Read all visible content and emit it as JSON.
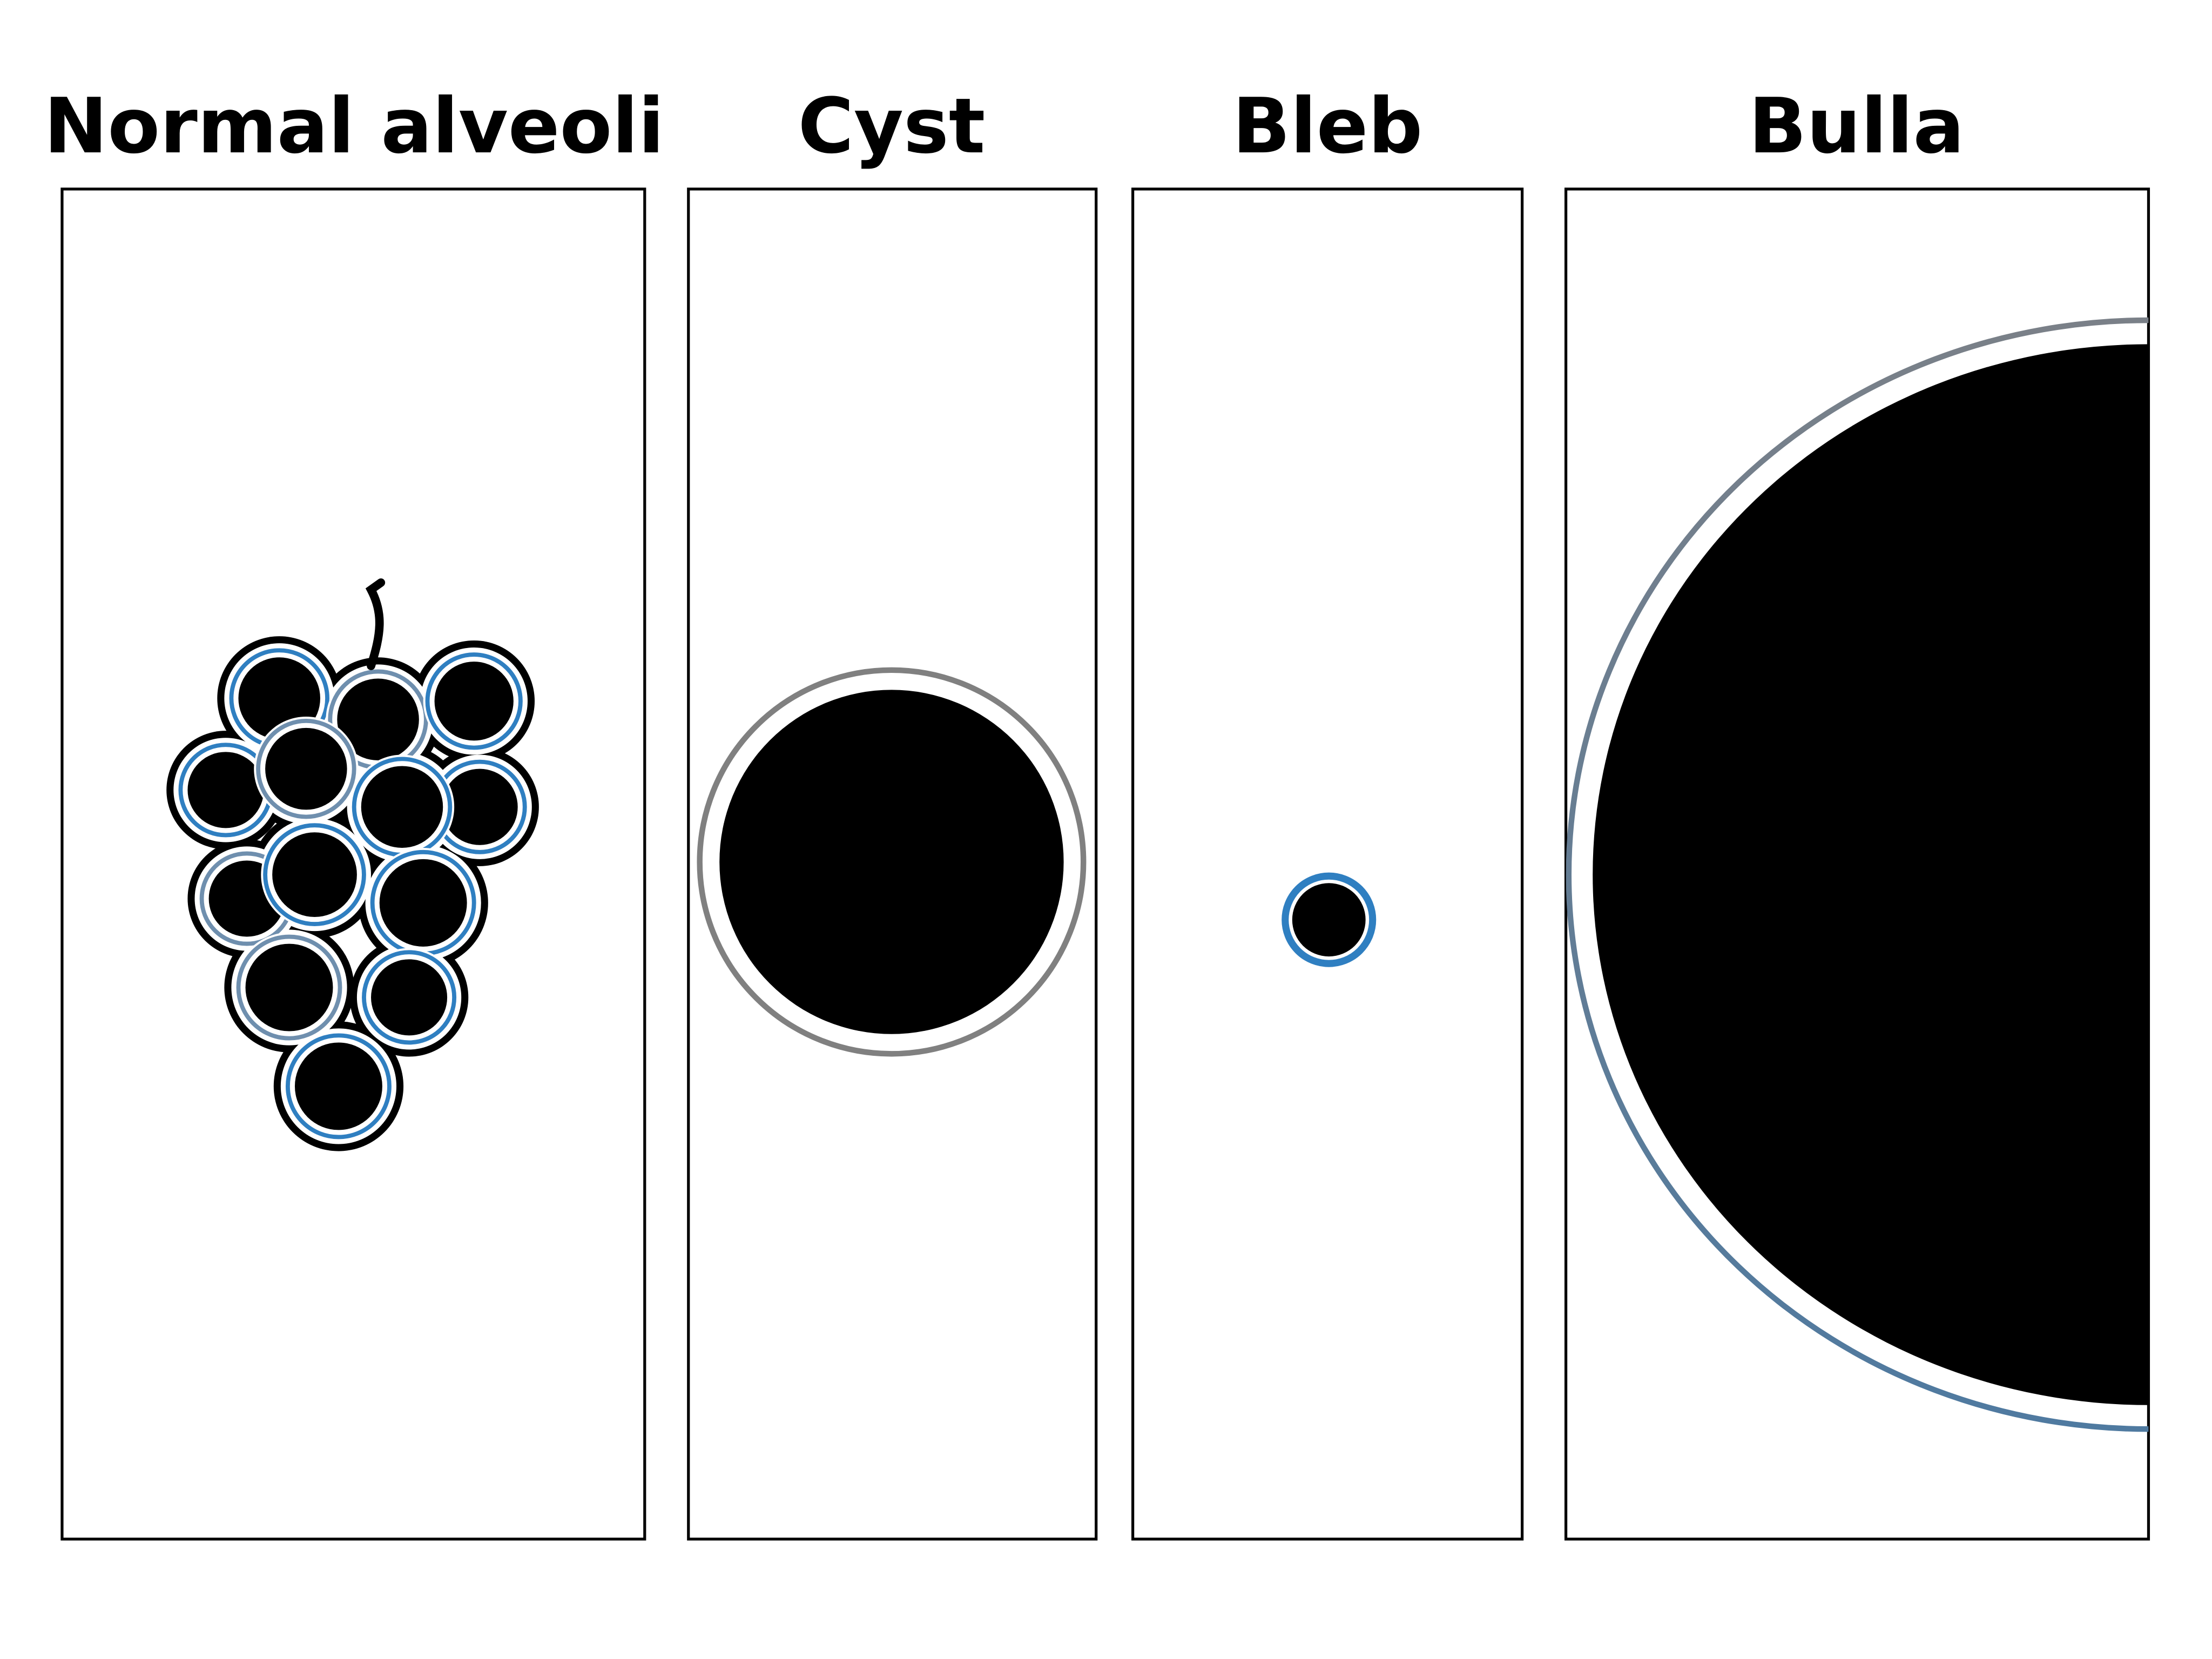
{
  "panels": [
    {
      "title": "Normal alveoli"
    },
    {
      "title": "Cyst"
    },
    {
      "title": "Bleb"
    },
    {
      "title": "Bulla"
    }
  ],
  "colors": {
    "fill": "#000000",
    "membrane_blue": "#2f7fc1",
    "membrane_gray": "#808080",
    "bulla_top": "#7a8088",
    "bulla_bottom": "#4f7aa0"
  }
}
